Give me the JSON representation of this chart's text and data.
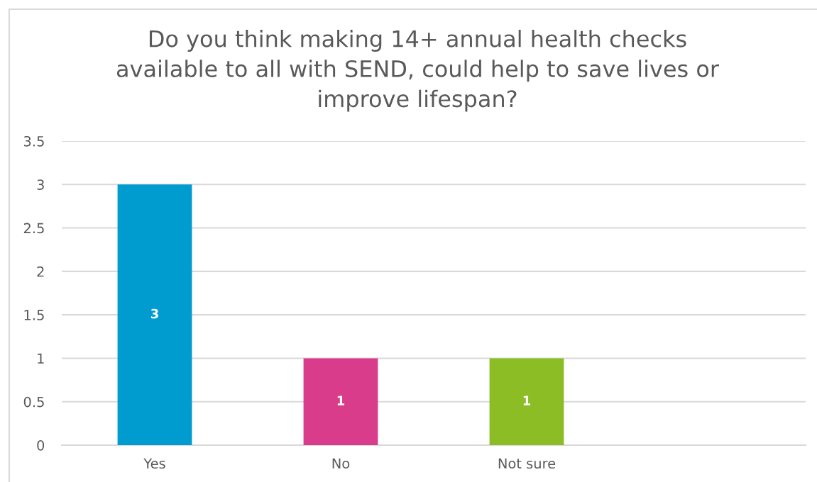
{
  "chart_data": {
    "type": "bar",
    "title": "Do you think making 14+ annual health checks\navailable to all with SEND, could help to save lives or\nimprove lifespan?",
    "categories": [
      "Yes",
      "No",
      "Not sure",
      null
    ],
    "values": [
      3,
      1,
      1,
      null
    ],
    "colors": [
      "#009ccf",
      "#da3c8c",
      "#8cbd24",
      null
    ],
    "ylim": [
      0,
      3.5
    ],
    "yticks": [
      0,
      0.5,
      1,
      1.5,
      2,
      2.5,
      3,
      3.5
    ],
    "grid": "y",
    "data_labels": true
  }
}
